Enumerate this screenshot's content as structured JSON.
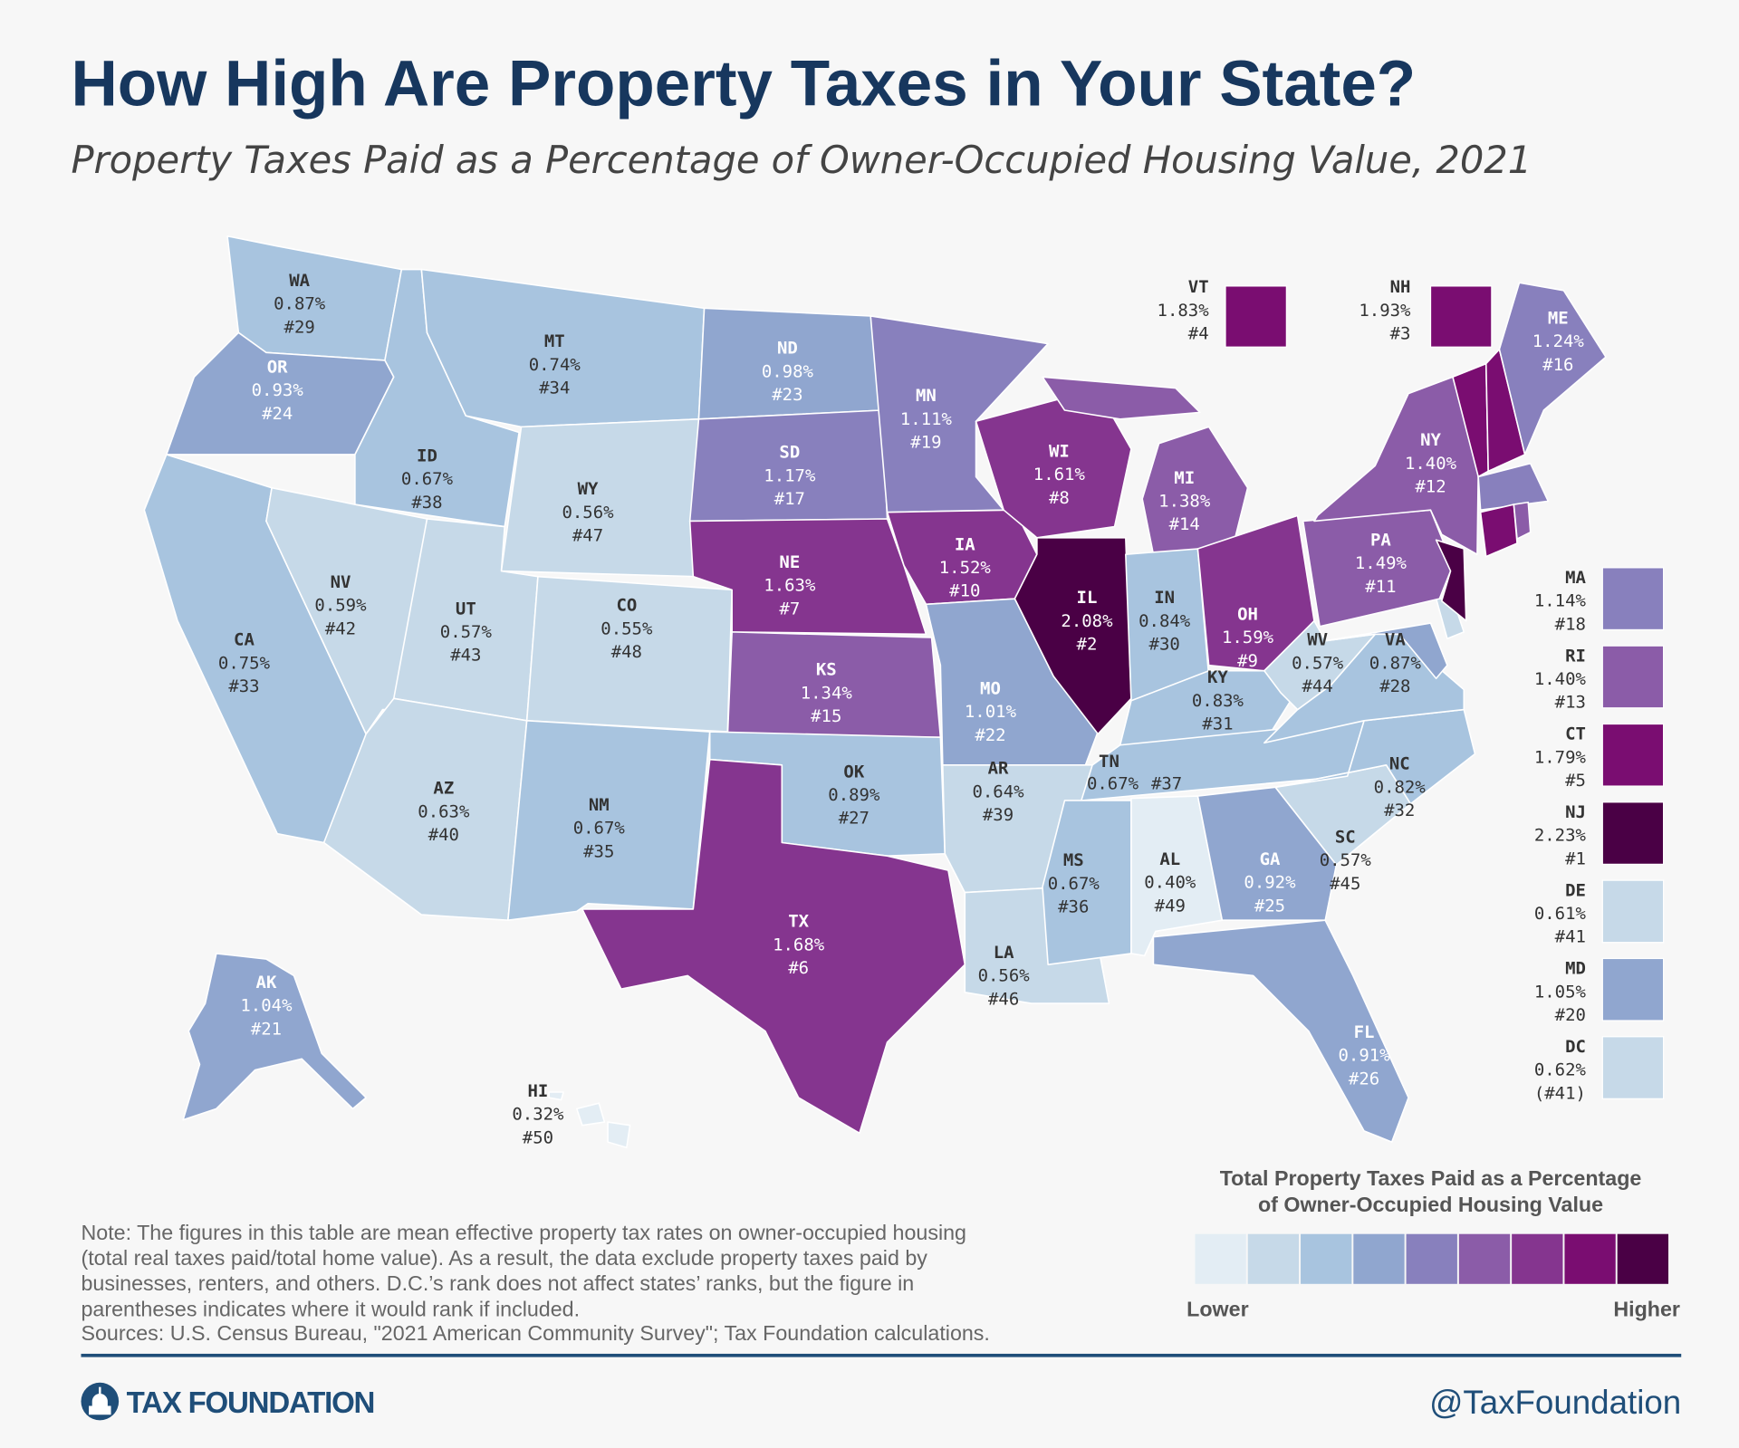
{
  "header": {
    "title": "How High Are Property Taxes in Your State?",
    "subtitle": "Property Taxes Paid as a Percentage of Owner-Occupied Housing Value, 2021"
  },
  "states": [
    {
      "abbr": "WA",
      "value": "0.87%",
      "rank": "#29",
      "color": "#a8c4df"
    },
    {
      "abbr": "OR",
      "value": "0.93%",
      "rank": "#24",
      "color": "#90a6cf"
    },
    {
      "abbr": "CA",
      "value": "0.75%",
      "rank": "#33",
      "color": "#a8c4df"
    },
    {
      "abbr": "NV",
      "value": "0.59%",
      "rank": "#42",
      "color": "#c6d9e8"
    },
    {
      "abbr": "ID",
      "value": "0.67%",
      "rank": "#38",
      "color": "#a8c4df"
    },
    {
      "abbr": "MT",
      "value": "0.74%",
      "rank": "#34",
      "color": "#a8c4df"
    },
    {
      "abbr": "WY",
      "value": "0.56%",
      "rank": "#47",
      "color": "#c6d9e8"
    },
    {
      "abbr": "UT",
      "value": "0.57%",
      "rank": "#43",
      "color": "#c6d9e8"
    },
    {
      "abbr": "CO",
      "value": "0.55%",
      "rank": "#48",
      "color": "#c6d9e8"
    },
    {
      "abbr": "AZ",
      "value": "0.63%",
      "rank": "#40",
      "color": "#c6d9e8"
    },
    {
      "abbr": "NM",
      "value": "0.67%",
      "rank": "#35",
      "color": "#a8c4df"
    },
    {
      "abbr": "ND",
      "value": "0.98%",
      "rank": "#23",
      "color": "#90a6cf"
    },
    {
      "abbr": "SD",
      "value": "1.17%",
      "rank": "#17",
      "color": "#8880bd"
    },
    {
      "abbr": "NE",
      "value": "1.63%",
      "rank": "#7",
      "color": "#85358f"
    },
    {
      "abbr": "KS",
      "value": "1.34%",
      "rank": "#15",
      "color": "#8b5ca8"
    },
    {
      "abbr": "OK",
      "value": "0.89%",
      "rank": "#27",
      "color": "#a8c4df"
    },
    {
      "abbr": "TX",
      "value": "1.68%",
      "rank": "#6",
      "color": "#85358f"
    },
    {
      "abbr": "MN",
      "value": "1.11%",
      "rank": "#19",
      "color": "#8880bd"
    },
    {
      "abbr": "IA",
      "value": "1.52%",
      "rank": "#10",
      "color": "#85358f"
    },
    {
      "abbr": "MO",
      "value": "1.01%",
      "rank": "#22",
      "color": "#90a6cf"
    },
    {
      "abbr": "AR",
      "value": "0.64%",
      "rank": "#39",
      "color": "#c6d9e8"
    },
    {
      "abbr": "LA",
      "value": "0.56%",
      "rank": "#46",
      "color": "#c6d9e8"
    },
    {
      "abbr": "WI",
      "value": "1.61%",
      "rank": "#8",
      "color": "#85358f"
    },
    {
      "abbr": "IL",
      "value": "2.08%",
      "rank": "#2",
      "color": "#4a0045"
    },
    {
      "abbr": "MI",
      "value": "1.38%",
      "rank": "#14",
      "color": "#8b5ca8"
    },
    {
      "abbr": "IN",
      "value": "0.84%",
      "rank": "#30",
      "color": "#a8c4df"
    },
    {
      "abbr": "OH",
      "value": "1.59%",
      "rank": "#9",
      "color": "#85358f"
    },
    {
      "abbr": "KY",
      "value": "0.83%",
      "rank": "#31",
      "color": "#a8c4df"
    },
    {
      "abbr": "TN",
      "value": "0.67%",
      "rank": "#37",
      "color": "#a8c4df"
    },
    {
      "abbr": "MS",
      "value": "0.67%",
      "rank": "#36",
      "color": "#a8c4df"
    },
    {
      "abbr": "AL",
      "value": "0.40%",
      "rank": "#49",
      "color": "#e3edf4"
    },
    {
      "abbr": "GA",
      "value": "0.92%",
      "rank": "#25",
      "color": "#90a6cf"
    },
    {
      "abbr": "FL",
      "value": "0.91%",
      "rank": "#26",
      "color": "#90a6cf"
    },
    {
      "abbr": "SC",
      "value": "0.57%",
      "rank": "#45",
      "color": "#c6d9e8"
    },
    {
      "abbr": "NC",
      "value": "0.82%",
      "rank": "#32",
      "color": "#a8c4df"
    },
    {
      "abbr": "VA",
      "value": "0.87%",
      "rank": "#28",
      "color": "#a8c4df"
    },
    {
      "abbr": "WV",
      "value": "0.57%",
      "rank": "#44",
      "color": "#c6d9e8"
    },
    {
      "abbr": "PA",
      "value": "1.49%",
      "rank": "#11",
      "color": "#8b5ca8"
    },
    {
      "abbr": "NY",
      "value": "1.40%",
      "rank": "#12",
      "color": "#8b5ca8"
    },
    {
      "abbr": "ME",
      "value": "1.24%",
      "rank": "#16",
      "color": "#8880bd"
    },
    {
      "abbr": "AK",
      "value": "1.04%",
      "rank": "#21",
      "color": "#90a6cf"
    },
    {
      "abbr": "HI",
      "value": "0.32%",
      "rank": "#50",
      "color": "#e3edf4"
    },
    {
      "abbr": "VT",
      "value": "1.83%",
      "rank": "#4",
      "color": "#7a0d71"
    },
    {
      "abbr": "NH",
      "value": "1.93%",
      "rank": "#3",
      "color": "#7a0d71"
    },
    {
      "abbr": "MA",
      "value": "1.14%",
      "rank": "#18",
      "color": "#8880bd"
    },
    {
      "abbr": "RI",
      "value": "1.40%",
      "rank": "#13",
      "color": "#8b5ca8"
    },
    {
      "abbr": "CT",
      "value": "1.79%",
      "rank": "#5",
      "color": "#7a0d71"
    },
    {
      "abbr": "NJ",
      "value": "2.23%",
      "rank": "#1",
      "color": "#4a0045"
    },
    {
      "abbr": "DE",
      "value": "0.61%",
      "rank": "#41",
      "color": "#c6d9e8"
    },
    {
      "abbr": "MD",
      "value": "1.05%",
      "rank": "#20",
      "color": "#90a6cf"
    },
    {
      "abbr": "DC",
      "value": "0.62%",
      "rank": "(#41)",
      "color": "#c6d9e8"
    }
  ],
  "legend": {
    "title_line1": "Total Property Taxes Paid as a Percentage",
    "title_line2": "of Owner-Occupied Housing Value",
    "low_label": "Lower",
    "high_label": "Higher",
    "colors": [
      "#f7f7f7",
      "#e3edf4",
      "#c6d9e8",
      "#a8c4df",
      "#90a6cf",
      "#8880bd",
      "#8b5ca8",
      "#85358f",
      "#7a0d71",
      "#4a0045"
    ]
  },
  "note": [
    "Note: The figures in this table are mean effective property tax rates on owner-occupied housing",
    "(total real taxes paid/total home value). As a result, the data exclude property taxes paid by",
    "businesses, renters, and others. D.C.’s rank does not affect states’ ranks, but the figure in",
    "parentheses indicates where it would rank if included.",
    "Sources: U.S. Census Bureau, \"2021 American Community Survey\"; Tax Foundation calculations."
  ],
  "footer": {
    "brand": "TAX FOUNDATION",
    "handle": "@TaxFoundation",
    "rule_color": "#1f4e79"
  }
}
